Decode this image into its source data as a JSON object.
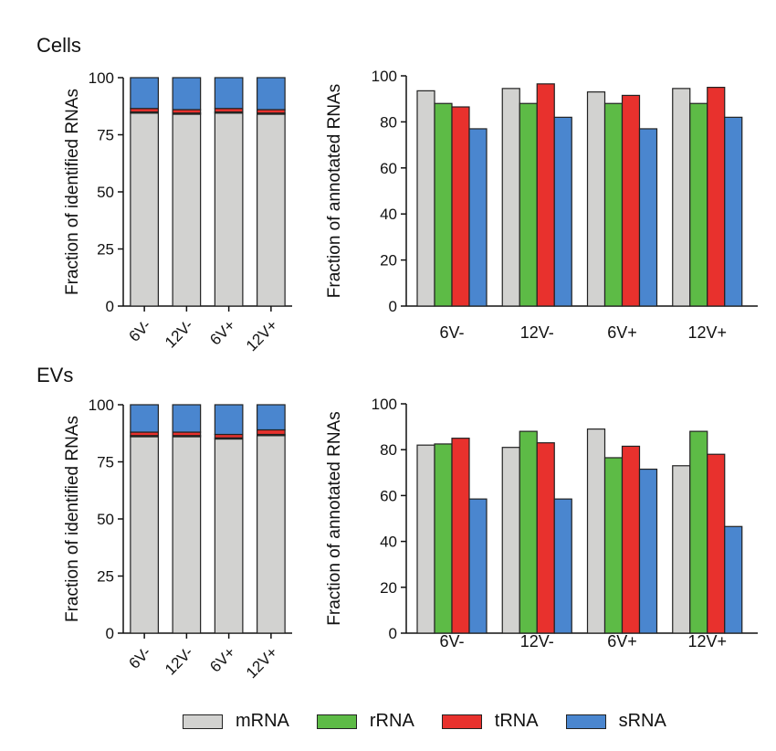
{
  "colors": {
    "mRNA": "#d2d2d0",
    "rRNA": "#5dbb46",
    "tRNA": "#e8312d",
    "sRNA": "#4a86cf"
  },
  "sections": [
    {
      "title": "Cells",
      "stacked": {
        "ylabel": "Fraction of identified RNAs",
        "ticks": [
          0,
          25,
          50,
          75,
          100
        ],
        "ylim": [
          0,
          100
        ]
      },
      "grouped": {
        "ylabel": "Fraction of annotated RNAs",
        "ticks": [
          0,
          20,
          40,
          60,
          80,
          100
        ],
        "ylim": [
          0,
          100
        ]
      }
    },
    {
      "title": "EVs",
      "stacked": {
        "ylabel": "Fraction of identified RNAs",
        "ticks": [
          0,
          25,
          50,
          75,
          100
        ],
        "ylim": [
          0,
          100
        ]
      },
      "grouped": {
        "ylabel": "Fraction of annotated RNAs",
        "ticks": [
          0,
          20,
          40,
          60,
          80,
          100
        ],
        "ylim": [
          0,
          100
        ]
      }
    }
  ],
  "legend": [
    "mRNA",
    "rRNA",
    "tRNA",
    "sRNA"
  ],
  "chart_data": [
    {
      "panel": "Cells - identified",
      "type": "bar",
      "stacked": true,
      "categories": [
        "6V-",
        "12V-",
        "6V+",
        "12V+"
      ],
      "series": [
        {
          "name": "mRNA",
          "values": [
            84.5,
            84,
            84.5,
            84
          ]
        },
        {
          "name": "rRNA",
          "values": [
            0.5,
            0.5,
            0.5,
            0.5
          ]
        },
        {
          "name": "tRNA",
          "values": [
            1.5,
            1.5,
            1.5,
            1.5
          ]
        },
        {
          "name": "sRNA",
          "values": [
            13.5,
            14,
            13.5,
            14
          ]
        }
      ],
      "ylabel": "Fraction of identified RNAs",
      "ylim": [
        0,
        100
      ]
    },
    {
      "panel": "Cells - annotated",
      "type": "bar",
      "categories": [
        "6V-",
        "12V-",
        "6V+",
        "12V+"
      ],
      "series": [
        {
          "name": "mRNA",
          "values": [
            93.5,
            94.5,
            93,
            94.5
          ]
        },
        {
          "name": "rRNA",
          "values": [
            88,
            88,
            88,
            88
          ]
        },
        {
          "name": "tRNA",
          "values": [
            86.5,
            96.5,
            91.5,
            95
          ]
        },
        {
          "name": "sRNA",
          "values": [
            77,
            82,
            77,
            82
          ]
        }
      ],
      "ylabel": "Fraction of annotated RNAs",
      "ylim": [
        0,
        100
      ]
    },
    {
      "panel": "EVs - identified",
      "type": "bar",
      "stacked": true,
      "categories": [
        "6V-",
        "12V-",
        "6V+",
        "12V+"
      ],
      "series": [
        {
          "name": "mRNA",
          "values": [
            86,
            86,
            85,
            86.5
          ]
        },
        {
          "name": "rRNA",
          "values": [
            0.5,
            0.5,
            0.5,
            0.5
          ]
        },
        {
          "name": "tRNA",
          "values": [
            1.5,
            1.5,
            1.5,
            2
          ]
        },
        {
          "name": "sRNA",
          "values": [
            12,
            12,
            13,
            11
          ]
        }
      ],
      "ylabel": "Fraction of identified RNAs",
      "ylim": [
        0,
        100
      ]
    },
    {
      "panel": "EVs - annotated",
      "type": "bar",
      "categories": [
        "6V-",
        "12V-",
        "6V+",
        "12V+"
      ],
      "series": [
        {
          "name": "mRNA",
          "values": [
            82,
            81,
            89,
            73
          ]
        },
        {
          "name": "rRNA",
          "values": [
            82.5,
            88,
            76.5,
            88
          ]
        },
        {
          "name": "tRNA",
          "values": [
            85,
            83,
            81.5,
            78
          ]
        },
        {
          "name": "sRNA",
          "values": [
            58.5,
            58.5,
            71.5,
            46.5
          ]
        }
      ],
      "ylabel": "Fraction of annotated RNAs",
      "ylim": [
        0,
        100
      ]
    }
  ]
}
